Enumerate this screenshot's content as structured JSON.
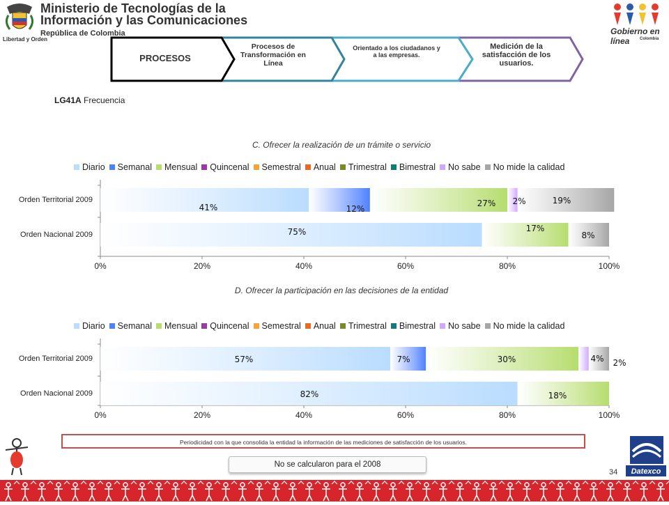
{
  "header": {
    "ministry_line1": "Ministerio de Tecnologías de la",
    "ministry_line2": "Información y las Comunicaciones",
    "ministry_sub": "República de Colombia",
    "logo_caption": "Libertad y Orden",
    "gel_title": "Gobierno en línea",
    "gel_sub": "Colombia"
  },
  "process_bar": {
    "steps": [
      "PROCESOS",
      "Procesos de Transformación en Línea",
      "Orientado a los ciudadanos y a las empresas.",
      "Medición de la satisfacción de los usuarios."
    ],
    "colors": [
      "#000000",
      "#31849b",
      "#4bacc6",
      "#8064a2"
    ]
  },
  "question": {
    "code": "LG41A",
    "label": "Frecuencia"
  },
  "legend": [
    {
      "name": "Diario",
      "color": "#b9dcff"
    },
    {
      "name": "Semanal",
      "color": "#4f81ff"
    },
    {
      "name": "Mensual",
      "color": "#b6dd6e"
    },
    {
      "name": "Quincenal",
      "color": "#9b3aa3"
    },
    {
      "name": "Semestral",
      "color": "#f7a23b"
    },
    {
      "name": "Anual",
      "color": "#e96a24"
    },
    {
      "name": "Trimestral",
      "color": "#7a8a2a"
    },
    {
      "name": "Bimestral",
      "color": "#0f7b7b"
    },
    {
      "name": "No sabe",
      "color": "#d0a8ff"
    },
    {
      "name": "No mide la calidad",
      "color": "#a6a6a6"
    }
  ],
  "chart_data": [
    {
      "type": "bar",
      "orientation": "horizontal-stacked-100",
      "title": "C. Ofrecer la realización de un trámite o servicio",
      "categories": [
        "Orden Territorial 2009",
        "Orden Nacional 2009"
      ],
      "x_ticks": [
        "0%",
        "20%",
        "40%",
        "60%",
        "80%",
        "100%"
      ],
      "xlim": [
        0,
        100
      ],
      "series": [
        {
          "name": "Diario",
          "values": [
            41,
            75
          ],
          "labels": [
            "41%",
            "75%"
          ]
        },
        {
          "name": "Semanal",
          "values": [
            12,
            0
          ],
          "labels": [
            "12%",
            ""
          ]
        },
        {
          "name": "Mensual",
          "values": [
            27,
            17
          ],
          "labels": [
            "27%",
            "17%"
          ]
        },
        {
          "name": "No sabe",
          "values": [
            2,
            0
          ],
          "labels": [
            "2%",
            ""
          ]
        },
        {
          "name": "No mide la calidad",
          "values": [
            19,
            8
          ],
          "labels": [
            "19%",
            "8%"
          ]
        }
      ]
    },
    {
      "type": "bar",
      "orientation": "horizontal-stacked-100",
      "title": "D. Ofrecer la  participación en las decisiones de la entidad",
      "categories": [
        "Orden Territorial 2009",
        "Orden Nacional 2009"
      ],
      "x_ticks": [
        "0%",
        "20%",
        "40%",
        "60%",
        "80%",
        "100%"
      ],
      "xlim": [
        0,
        100
      ],
      "series": [
        {
          "name": "Diario",
          "values": [
            57,
            82
          ],
          "labels": [
            "57%",
            "82%"
          ]
        },
        {
          "name": "Semanal",
          "values": [
            7,
            0
          ],
          "labels": [
            "7%",
            ""
          ]
        },
        {
          "name": "Mensual",
          "values": [
            30,
            18
          ],
          "labels": [
            "30%",
            "18%"
          ]
        },
        {
          "name": "No sabe",
          "values": [
            2,
            0
          ],
          "labels": [
            "2%",
            ""
          ]
        },
        {
          "name": "No mide la calidad",
          "values": [
            4,
            0
          ],
          "labels": [
            "4%",
            ""
          ]
        }
      ]
    }
  ],
  "note": "Periodicidad con la que consolida la entidad la información de las mediciones de satisfacción de los usuarios.",
  "no_calc": "No se calcularon para el 2008",
  "page_number": "34",
  "datexco_label": "Datexco"
}
